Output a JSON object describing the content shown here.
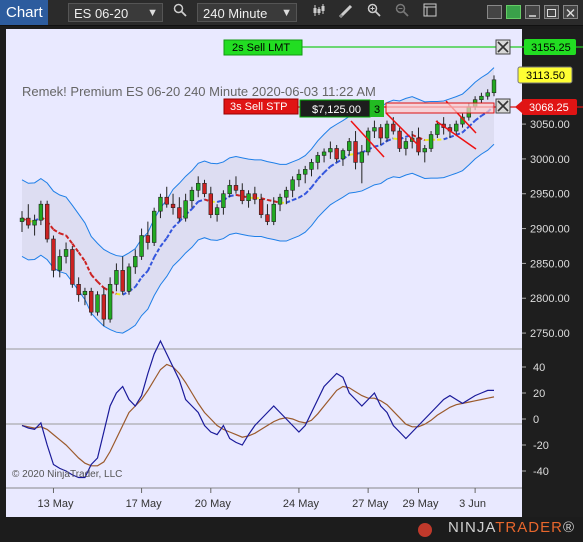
{
  "toolbar": {
    "tab_label": "Chart",
    "instrument": "ES 06-20",
    "interval": "240 Minute",
    "icons": [
      "search-icon",
      "bar-type-icon",
      "draw-icon",
      "zoom-in-icon",
      "zoom-out-icon",
      "properties-icon"
    ]
  },
  "chart": {
    "header_text": "Remek!  Premium  ES 06-20  240 Minute  2020-06-03 11:22 AM",
    "copyright": "© 2020 NinjaTrader, LLC",
    "orders": [
      {
        "label": "2s  Sell LMT",
        "price": "3155.25",
        "color": "#22cc22"
      },
      {
        "label": "3s  Sell STP",
        "price": "3068.25",
        "color": "#dd1111"
      }
    ],
    "last_price": "3113.50",
    "position": {
      "pnl": "$7,125.00",
      "qty": "3"
    },
    "price_axis_labels": [
      "3050.00",
      "3000.00",
      "2950.00",
      "2900.00",
      "2850.00",
      "2800.00",
      "2750.00"
    ],
    "osc_axis_labels": [
      "40",
      "20",
      "0",
      "-20",
      "-40"
    ],
    "date_labels": [
      "13 May",
      "17 May",
      "20 May",
      "24 May",
      "27 May",
      "29 May",
      "3 Jun"
    ]
  },
  "brand": {
    "prefix": "NINJA",
    "suffix": "TRADER",
    "reg": "®"
  },
  "colors": {
    "accent": "#2d5c9e",
    "band": "#1e7fe8",
    "bull": "#22aa22",
    "bear": "#cc2222"
  },
  "chart_data": {
    "type": "candlestick",
    "title": "ES 06-20 240 Minute",
    "ylim": [
      2730,
      3175
    ],
    "ohlc": [
      [
        2910,
        2925,
        2895,
        2915
      ],
      [
        2915,
        2935,
        2900,
        2905
      ],
      [
        2905,
        2920,
        2890,
        2912
      ],
      [
        2912,
        2940,
        2905,
        2935
      ],
      [
        2935,
        2940,
        2880,
        2885
      ],
      [
        2885,
        2890,
        2830,
        2840
      ],
      [
        2840,
        2870,
        2830,
        2860
      ],
      [
        2860,
        2880,
        2850,
        2870
      ],
      [
        2870,
        2875,
        2815,
        2820
      ],
      [
        2820,
        2830,
        2795,
        2805
      ],
      [
        2805,
        2815,
        2790,
        2810
      ],
      [
        2810,
        2815,
        2775,
        2780
      ],
      [
        2780,
        2810,
        2775,
        2805
      ],
      [
        2805,
        2815,
        2760,
        2770
      ],
      [
        2770,
        2830,
        2765,
        2820
      ],
      [
        2820,
        2850,
        2810,
        2840
      ],
      [
        2840,
        2860,
        2805,
        2810
      ],
      [
        2810,
        2850,
        2805,
        2845
      ],
      [
        2845,
        2870,
        2835,
        2860
      ],
      [
        2860,
        2900,
        2855,
        2890
      ],
      [
        2890,
        2910,
        2870,
        2880
      ],
      [
        2880,
        2930,
        2875,
        2925
      ],
      [
        2925,
        2950,
        2915,
        2945
      ],
      [
        2945,
        2960,
        2930,
        2935
      ],
      [
        2935,
        2950,
        2920,
        2930
      ],
      [
        2930,
        2945,
        2910,
        2915
      ],
      [
        2915,
        2950,
        2910,
        2940
      ],
      [
        2940,
        2960,
        2930,
        2955
      ],
      [
        2955,
        2975,
        2945,
        2965
      ],
      [
        2965,
        2970,
        2945,
        2950
      ],
      [
        2950,
        2960,
        2915,
        2920
      ],
      [
        2920,
        2935,
        2910,
        2930
      ],
      [
        2930,
        2955,
        2920,
        2950
      ],
      [
        2950,
        2970,
        2945,
        2962
      ],
      [
        2962,
        2975,
        2950,
        2955
      ],
      [
        2955,
        2965,
        2935,
        2940
      ],
      [
        2940,
        2955,
        2930,
        2950
      ],
      [
        2950,
        2960,
        2935,
        2942
      ],
      [
        2942,
        2950,
        2915,
        2920
      ],
      [
        2920,
        2935,
        2905,
        2910
      ],
      [
        2910,
        2945,
        2905,
        2935
      ],
      [
        2935,
        2950,
        2925,
        2945
      ],
      [
        2945,
        2960,
        2935,
        2955
      ],
      [
        2955,
        2975,
        2945,
        2970
      ],
      [
        2970,
        2985,
        2960,
        2978
      ],
      [
        2978,
        2990,
        2965,
        2985
      ],
      [
        2985,
        3000,
        2975,
        2995
      ],
      [
        2995,
        3010,
        2985,
        3005
      ],
      [
        3005,
        3015,
        2995,
        3010
      ],
      [
        3010,
        3025,
        3000,
        3015
      ],
      [
        3015,
        3020,
        2995,
        3000
      ],
      [
        3000,
        3015,
        2990,
        3012
      ],
      [
        3012,
        3030,
        3005,
        3025
      ],
      [
        3025,
        3040,
        2985,
        2995
      ],
      [
        2995,
        3020,
        2965,
        3010
      ],
      [
        3010,
        3045,
        3005,
        3040
      ],
      [
        3040,
        3055,
        3030,
        3045
      ],
      [
        3045,
        3050,
        3020,
        3030
      ],
      [
        3030,
        3055,
        3025,
        3050
      ],
      [
        3050,
        3060,
        3035,
        3040
      ],
      [
        3040,
        3045,
        3010,
        3015
      ],
      [
        3015,
        3030,
        3005,
        3025
      ],
      [
        3025,
        3040,
        3015,
        3030
      ],
      [
        3030,
        3045,
        3005,
        3010
      ],
      [
        3010,
        3020,
        2995,
        3015
      ],
      [
        3015,
        3040,
        3010,
        3035
      ],
      [
        3035,
        3055,
        3030,
        3050
      ],
      [
        3050,
        3060,
        3035,
        3045
      ],
      [
        3045,
        3050,
        3030,
        3040
      ],
      [
        3040,
        3055,
        3035,
        3050
      ],
      [
        3050,
        3065,
        3045,
        3060
      ],
      [
        3060,
        3080,
        3055,
        3075
      ],
      [
        3075,
        3090,
        3070,
        3085
      ],
      [
        3085,
        3095,
        3080,
        3090
      ],
      [
        3090,
        3100,
        3085,
        3095
      ],
      [
        3095,
        3120,
        3090,
        3113.5
      ]
    ],
    "oscillator": {
      "fast": [
        -5,
        -7,
        -8,
        -3,
        -20,
        -35,
        -38,
        -40,
        -43,
        -45,
        -45,
        -35,
        -30,
        -10,
        10,
        20,
        25,
        15,
        10,
        18,
        35,
        50,
        60,
        50,
        40,
        30,
        15,
        10,
        5,
        -5,
        -10,
        -12,
        -5,
        -15,
        -18,
        -20,
        -12,
        -5,
        0,
        5,
        10,
        5,
        0,
        -5,
        -10,
        -5,
        5,
        15,
        25,
        30,
        35,
        32,
        20,
        15,
        10,
        15,
        20,
        10,
        5,
        -5,
        -10,
        -15,
        -10,
        -5,
        0,
        5,
        10,
        15,
        18,
        15,
        12,
        15,
        18,
        20,
        22,
        22
      ],
      "slow": [
        -5,
        -6,
        -7,
        -6,
        -8,
        -12,
        -16,
        -20,
        -25,
        -30,
        -34,
        -36,
        -36,
        -33,
        -25,
        -15,
        -5,
        5,
        10,
        15,
        22,
        30,
        38,
        42,
        40,
        35,
        28,
        20,
        12,
        5,
        0,
        -5,
        -8,
        -10,
        -12,
        -14,
        -13,
        -11,
        -8,
        -5,
        -2,
        0,
        1,
        0,
        -2,
        -3,
        -1,
        4,
        10,
        16,
        22,
        25,
        24,
        21,
        18,
        16,
        16,
        14,
        11,
        6,
        1,
        -4,
        -6,
        -6,
        -4,
        -1,
        3,
        6,
        9,
        11,
        12,
        13,
        14,
        15,
        16,
        17
      ]
    }
  }
}
